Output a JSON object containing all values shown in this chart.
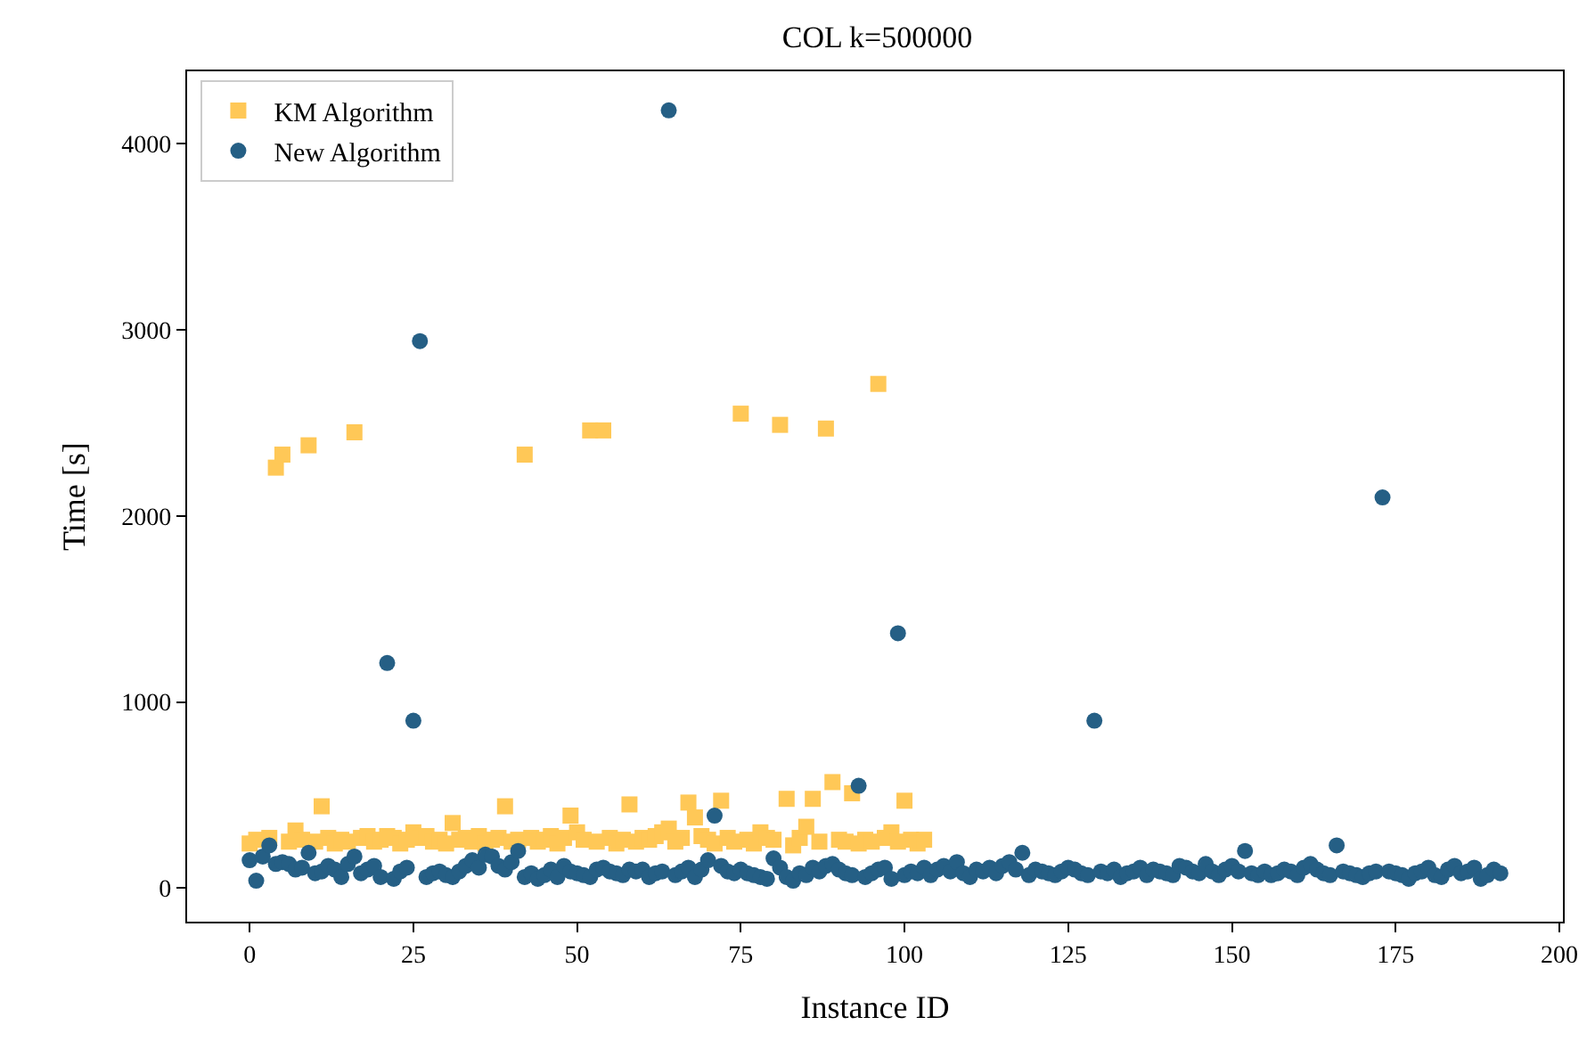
{
  "chart_data": {
    "type": "scatter",
    "title": "COL k=500000",
    "xlabel": "Instance ID",
    "ylabel": "Time [s]",
    "xlim": [
      -9.55,
      200.55
    ],
    "xticks": [
      0,
      25,
      50,
      75,
      100,
      125,
      150,
      175,
      200
    ],
    "ylim": [
      -180,
      4390
    ],
    "yticks": [
      0,
      1000,
      2000,
      3000,
      4000
    ],
    "legend": "top left",
    "series": [
      {
        "name": "KM Algorithm",
        "color": "#ffc857",
        "marker": "square",
        "x": [
          0,
          1,
          2,
          3,
          4,
          5,
          6,
          7,
          8,
          9,
          10,
          11,
          12,
          13,
          14,
          15,
          16,
          17,
          18,
          19,
          20,
          21,
          22,
          23,
          24,
          25,
          26,
          27,
          28,
          29,
          30,
          31,
          32,
          33,
          34,
          35,
          36,
          37,
          38,
          39,
          40,
          41,
          42,
          43,
          44,
          45,
          46,
          47,
          48,
          49,
          50,
          51,
          52,
          53,
          54,
          55,
          56,
          57,
          58,
          59,
          60,
          61,
          62,
          63,
          64,
          65,
          66,
          67,
          68,
          69,
          70,
          71,
          72,
          73,
          74,
          75,
          76,
          77,
          78,
          79,
          80,
          81,
          82,
          83,
          84,
          85,
          86,
          87,
          88,
          89,
          90,
          91,
          92,
          93,
          94,
          95,
          96,
          97,
          98,
          99,
          100,
          101,
          102,
          103
        ],
        "values": [
          240,
          260,
          null,
          270,
          2260,
          2330,
          250,
          310,
          260,
          2380,
          250,
          440,
          270,
          240,
          260,
          250,
          2450,
          270,
          280,
          250,
          260,
          280,
          270,
          240,
          260,
          300,
          270,
          280,
          250,
          260,
          240,
          350,
          260,
          270,
          250,
          280,
          240,
          260,
          270,
          440,
          250,
          260,
          2330,
          270,
          250,
          260,
          280,
          240,
          270,
          390,
          300,
          260,
          2460,
          250,
          2460,
          270,
          240,
          260,
          450,
          250,
          270,
          260,
          280,
          300,
          320,
          250,
          270,
          460,
          380,
          280,
          260,
          240,
          470,
          270,
          250,
          2550,
          260,
          240,
          300,
          270,
          260,
          2490,
          480,
          230,
          270,
          330,
          480,
          250,
          2470,
          570,
          260,
          250,
          510,
          240,
          260,
          250,
          2710,
          270,
          300,
          250,
          470,
          260,
          240,
          260
        ]
      },
      {
        "name": "New Algorithm",
        "color": "#255f85",
        "marker": "circle",
        "x": [
          0,
          1,
          2,
          3,
          4,
          5,
          6,
          7,
          8,
          9,
          10,
          11,
          12,
          13,
          14,
          15,
          16,
          17,
          18,
          19,
          20,
          21,
          22,
          23,
          24,
          25,
          26,
          27,
          28,
          29,
          30,
          31,
          32,
          33,
          34,
          35,
          36,
          37,
          38,
          39,
          40,
          41,
          42,
          43,
          44,
          45,
          46,
          47,
          48,
          49,
          50,
          51,
          52,
          53,
          54,
          55,
          56,
          57,
          58,
          59,
          60,
          61,
          62,
          63,
          64,
          65,
          66,
          67,
          68,
          69,
          70,
          71,
          72,
          73,
          74,
          75,
          76,
          77,
          78,
          79,
          80,
          81,
          82,
          83,
          84,
          85,
          86,
          87,
          88,
          89,
          90,
          91,
          92,
          93,
          94,
          95,
          96,
          97,
          98,
          99,
          100,
          101,
          102,
          103,
          104,
          105,
          106,
          107,
          108,
          109,
          110,
          111,
          112,
          113,
          114,
          115,
          116,
          117,
          118,
          119,
          120,
          121,
          122,
          123,
          124,
          125,
          126,
          127,
          128,
          129,
          130,
          131,
          132,
          133,
          134,
          135,
          136,
          137,
          138,
          139,
          140,
          141,
          142,
          143,
          144,
          145,
          146,
          147,
          148,
          149,
          150,
          151,
          152,
          153,
          154,
          155,
          156,
          157,
          158,
          159,
          160,
          161,
          162,
          163,
          164,
          165,
          166,
          167,
          168,
          169,
          170,
          171,
          172,
          173,
          174,
          175,
          176,
          177,
          178,
          179,
          180,
          181,
          182,
          183,
          184,
          185,
          186,
          187,
          188,
          189,
          190,
          191
        ],
        "values": [
          150,
          40,
          170,
          230,
          130,
          140,
          130,
          100,
          110,
          190,
          80,
          90,
          120,
          100,
          60,
          130,
          170,
          80,
          100,
          120,
          60,
          1210,
          50,
          90,
          110,
          900,
          2940,
          60,
          80,
          90,
          70,
          60,
          90,
          120,
          150,
          110,
          180,
          170,
          120,
          100,
          140,
          200,
          60,
          80,
          50,
          70,
          100,
          60,
          120,
          90,
          80,
          70,
          60,
          100,
          110,
          90,
          80,
          70,
          100,
          90,
          100,
          60,
          80,
          90,
          4180,
          70,
          90,
          110,
          60,
          100,
          150,
          390,
          120,
          90,
          80,
          100,
          80,
          70,
          60,
          50,
          160,
          110,
          60,
          40,
          80,
          70,
          110,
          90,
          120,
          130,
          100,
          80,
          70,
          550,
          60,
          80,
          100,
          110,
          50,
          1370,
          70,
          90,
          80,
          110,
          70,
          100,
          120,
          90,
          140,
          80,
          60,
          100,
          90,
          110,
          80,
          120,
          140,
          100,
          190,
          70,
          100,
          90,
          80,
          70,
          90,
          110,
          100,
          80,
          70,
          900,
          90,
          80,
          100,
          60,
          80,
          90,
          110,
          70,
          100,
          90,
          80,
          70,
          120,
          110,
          90,
          80,
          130,
          90,
          70,
          100,
          120,
          90,
          200,
          80,
          70,
          90,
          70,
          80,
          100,
          90,
          70,
          110,
          130,
          100,
          80,
          70,
          230,
          90,
          80,
          70,
          60,
          80,
          90,
          2100,
          90,
          80,
          70,
          50,
          80,
          90,
          110,
          70,
          60,
          100,
          120,
          80,
          90,
          110,
          50,
          70,
          100,
          80
        ]
      }
    ]
  }
}
